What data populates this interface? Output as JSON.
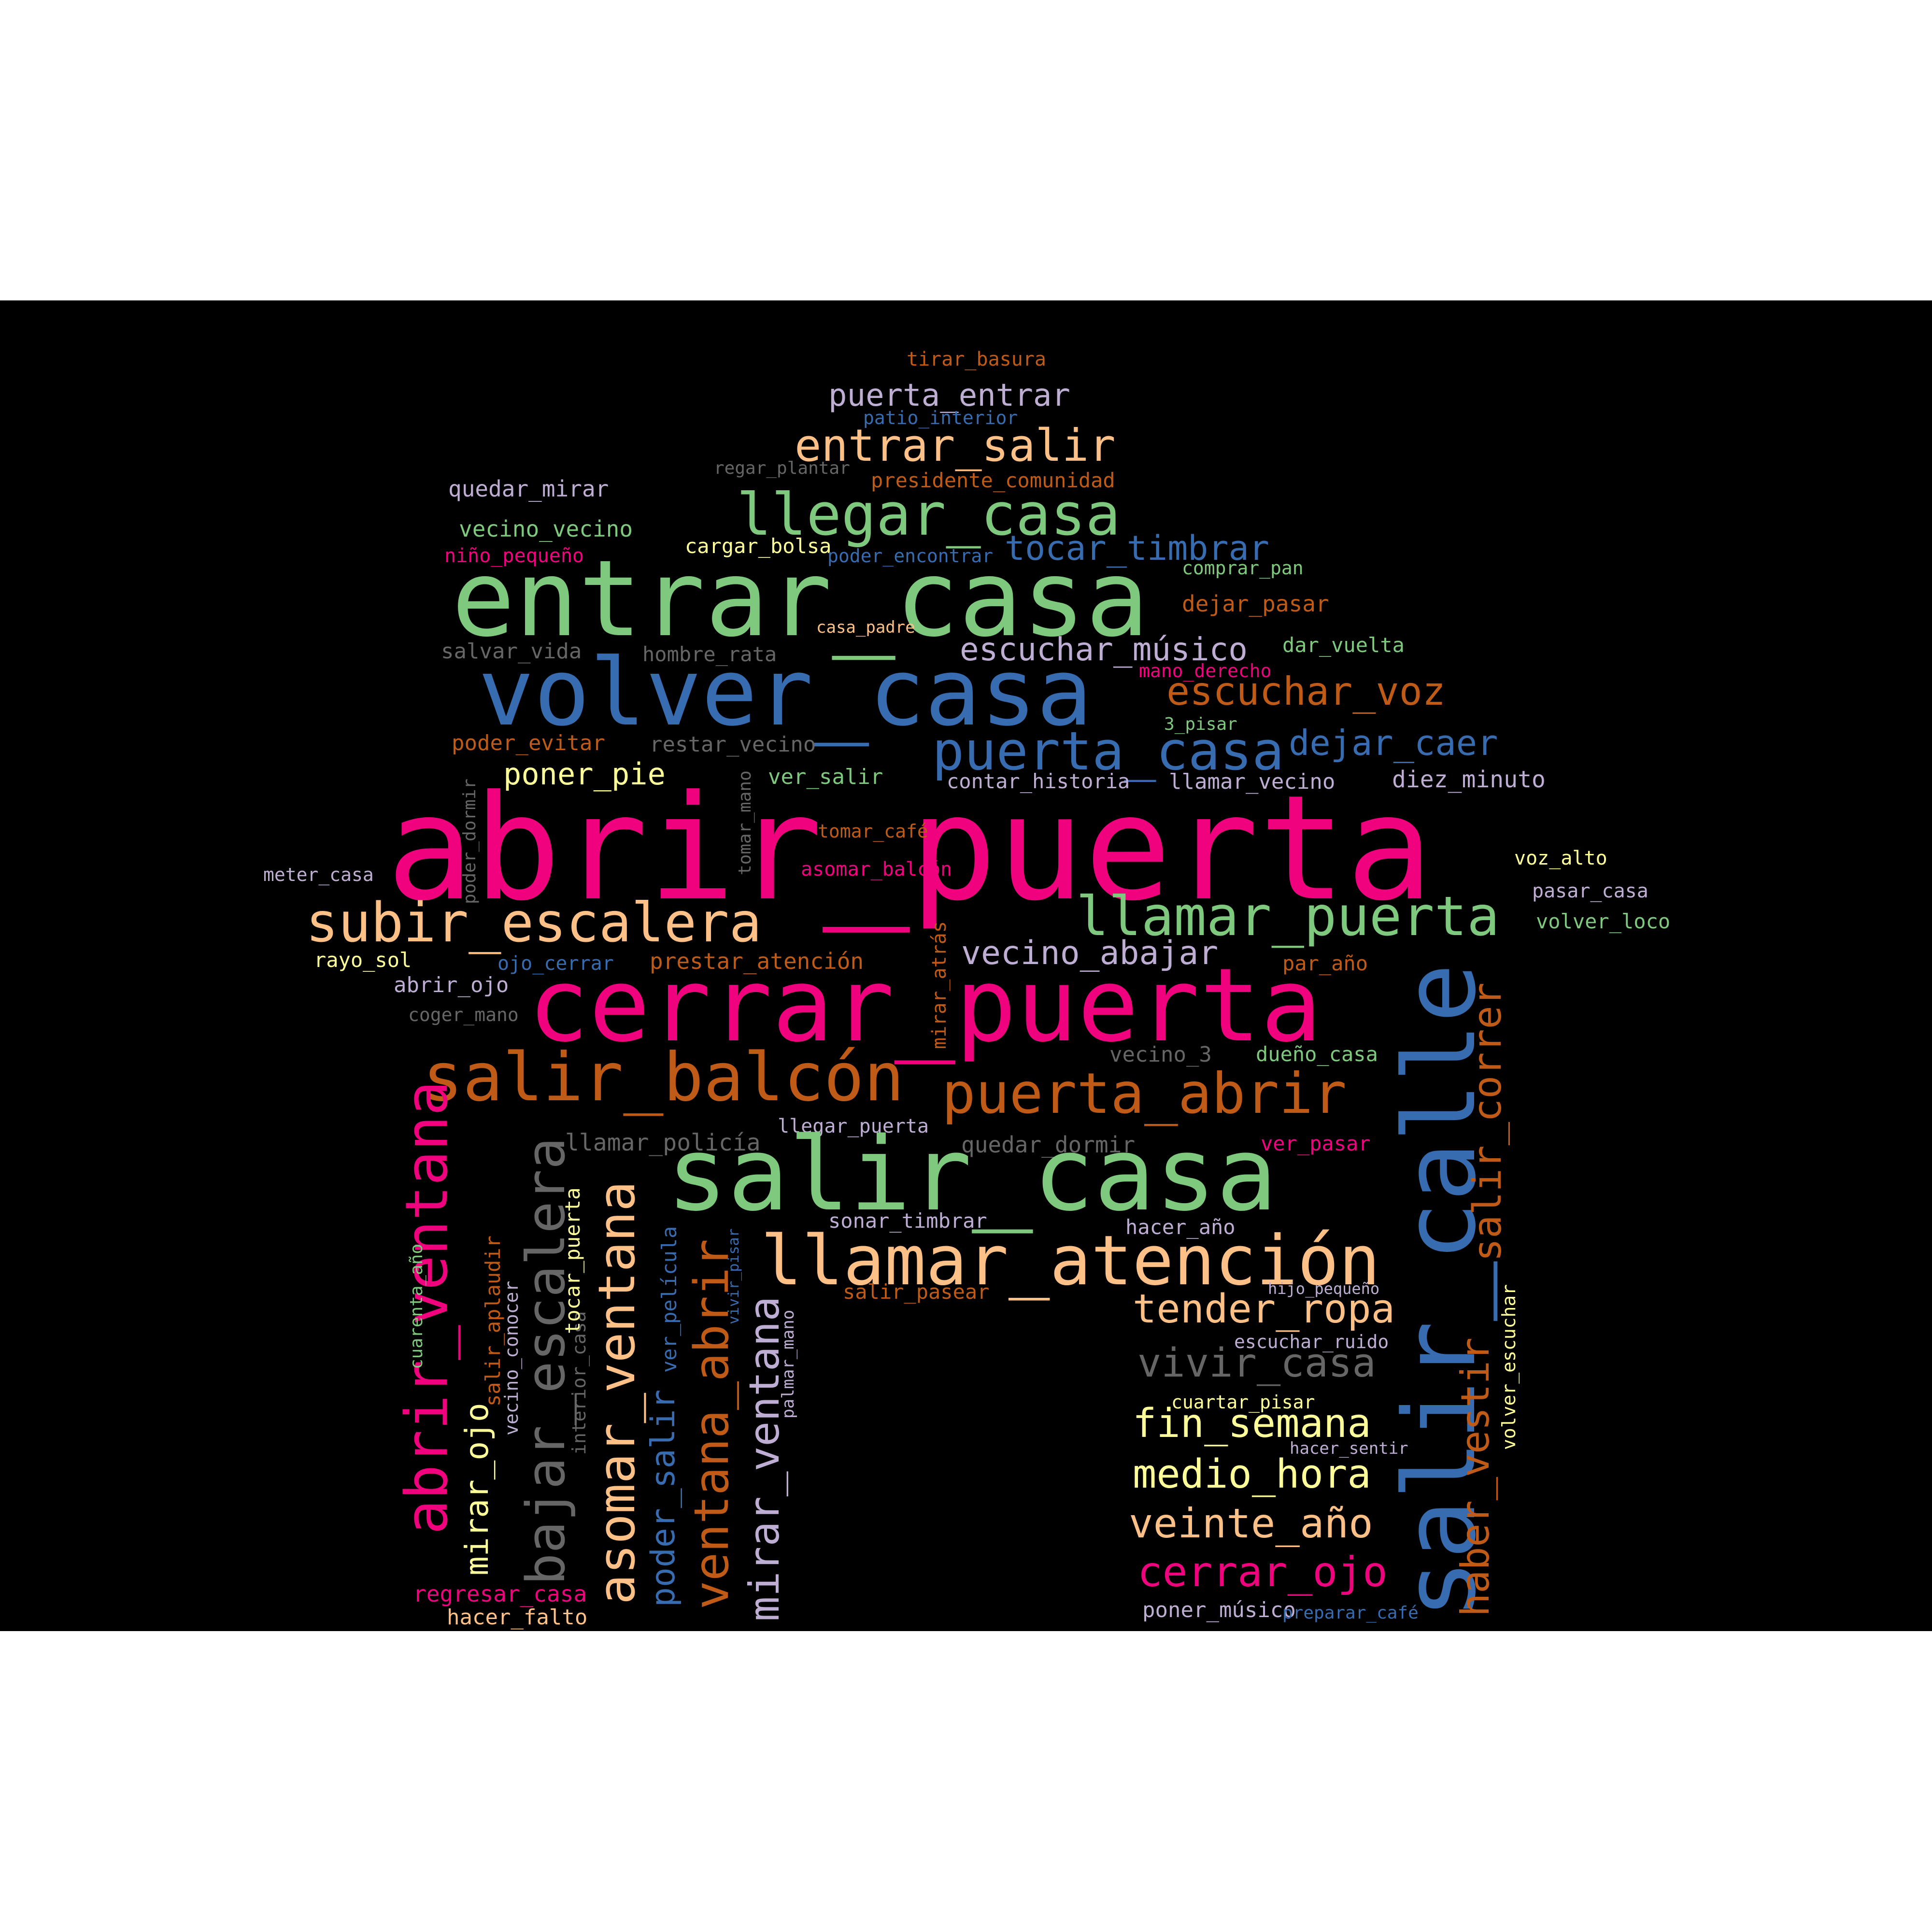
{
  "palette": {
    "background": "#000000",
    "pink": "#f0027f",
    "blue": "#386cb0",
    "green": "#7fc97f",
    "orange": "#bf5b17",
    "peach": "#fdc086",
    "lavender": "#beaed4",
    "yellow": "#ffff99",
    "gray": "#666666"
  },
  "words": {
    "abrir_puerta": "abrir_puerta",
    "cerrar_puerta": "cerrar_puerta",
    "entrar_casa": "entrar_casa",
    "volver_casa": "volver_casa",
    "salir_casa": "salir_casa",
    "salir_calle": "salir_calle",
    "llegar_casa": "llegar_casa",
    "entrar_salir": "entrar_salir",
    "puerta_entrar": "puerta_entrar",
    "tirar_basura": "tirar_basura",
    "patio_interior": "patio_interior",
    "regar_plantar": "regar_plantar",
    "presidente_comunidad": "presidente_comunidad",
    "quedar_mirar": "quedar_mirar",
    "vecino_vecino": "vecino_vecino",
    "nino_pequeno": "niño_pequeño",
    "cargar_bolsa": "cargar_bolsa",
    "poder_encontrar": "poder_encontrar",
    "tocar_timbrar": "tocar_timbrar",
    "comprar_pan": "comprar_pan",
    "dejar_pasar": "dejar_pasar",
    "casa_padre": "casa_padre",
    "salvar_vida": "salvar_vida",
    "hombre_rata": "hombre_rata",
    "escuchar_musico": "escuchar_músico",
    "dar_vuelta": "dar_vuelta",
    "mano_derecho": "mano_derecho",
    "escuchar_voz": "escuchar_voz",
    "tres_pisar": "3_pisar",
    "poder_evitar": "poder_evitar",
    "restar_vecino": "restar_vecino",
    "puerta_casa": "puerta_casa",
    "dejar_caer": "dejar_caer",
    "poner_pie": "poner_pie",
    "ver_salir": "ver_salir",
    "contar_historia": "contar_historia",
    "llamar_vecino": "llamar_vecino",
    "diez_minuto": "diez_minuto",
    "poder_dormir": "poder_dormir",
    "tomar_mano": "tomar_mano",
    "tomar_cafe": "tomar_café",
    "voz_alto": "voz_alto",
    "meter_casa": "meter_casa",
    "asomar_balcon": "asomar_balcón",
    "pasar_casa": "pasar_casa",
    "subir_escalera": "subir_escalera",
    "llamar_puerta": "llamar_puerta",
    "volver_loco": "volver_loco",
    "mirar_atras": "mirar_atrás",
    "rayo_sol": "rayo_sol",
    "ojo_cerrar": "ojo_cerrar",
    "prestar_atencion": "prestar_atención",
    "vecino_abajar": "vecino_abajar",
    "par_ano": "par_año",
    "abrir_ojo": "abrir_ojo",
    "coger_mano": "coger_mano",
    "vecino_3": "vecino_3",
    "dueno_casa": "dueño_casa",
    "salir_balcon": "salir_balcón",
    "puerta_abrir": "puerta_abrir",
    "salir_correr": "salir_correr",
    "llamar_policia": "llamar_policía",
    "llegar_puerta": "llegar_puerta",
    "quedar_dormir": "quedar_dormir",
    "ver_pasar": "ver_pasar",
    "abrir_ventana": "abrir_ventana",
    "bajar_escalera": "bajar_escalera",
    "asomar_ventana": "asomar_ventana",
    "ventana_abrir": "ventana_abrir",
    "mirar_ventana": "mirar_ventana",
    "sonar_timbrar": "sonar_timbrar",
    "hacer_ano": "hacer_año",
    "llamar_atencion": "llamar_atención",
    "salir_pasear": "salir_pasear",
    "hijo_pequeno": "hijo_pequeño",
    "tender_ropa": "tender_ropa",
    "escuchar_ruido": "escuchar_ruido",
    "vivir_casa": "vivir_casa",
    "cuartar_pisar": "cuartar_pisar",
    "fin_semana": "fin_semana",
    "hacer_sentir": "hacer_sentir",
    "medio_hora": "medio_hora",
    "veinte_ano": "veinte_año",
    "cerrar_ojo": "cerrar_ojo",
    "poner_musico": "poner_músico",
    "preparar_cafe": "preparar_café",
    "haber_vestir": "haber_vestir",
    "volver_escuchar": "volver_escuchar",
    "cuarenta_ano": "cuarenta_año",
    "salir_aplaudir": "salir_aplaudir",
    "mirar_ojo": "mirar_ojo",
    "vecino_conocer": "vecino_conocer",
    "interior_casa": "interior_casa",
    "tocar_puerta": "tocar_puerta",
    "ver_pelicula": "ver_película",
    "poder_salir": "poder_salir",
    "vivir_pisar": "vivir_pisar",
    "palmar_mano": "palmar_mano",
    "regresar_casa": "regresar_casa",
    "hacer_falto": "hacer_falto"
  }
}
